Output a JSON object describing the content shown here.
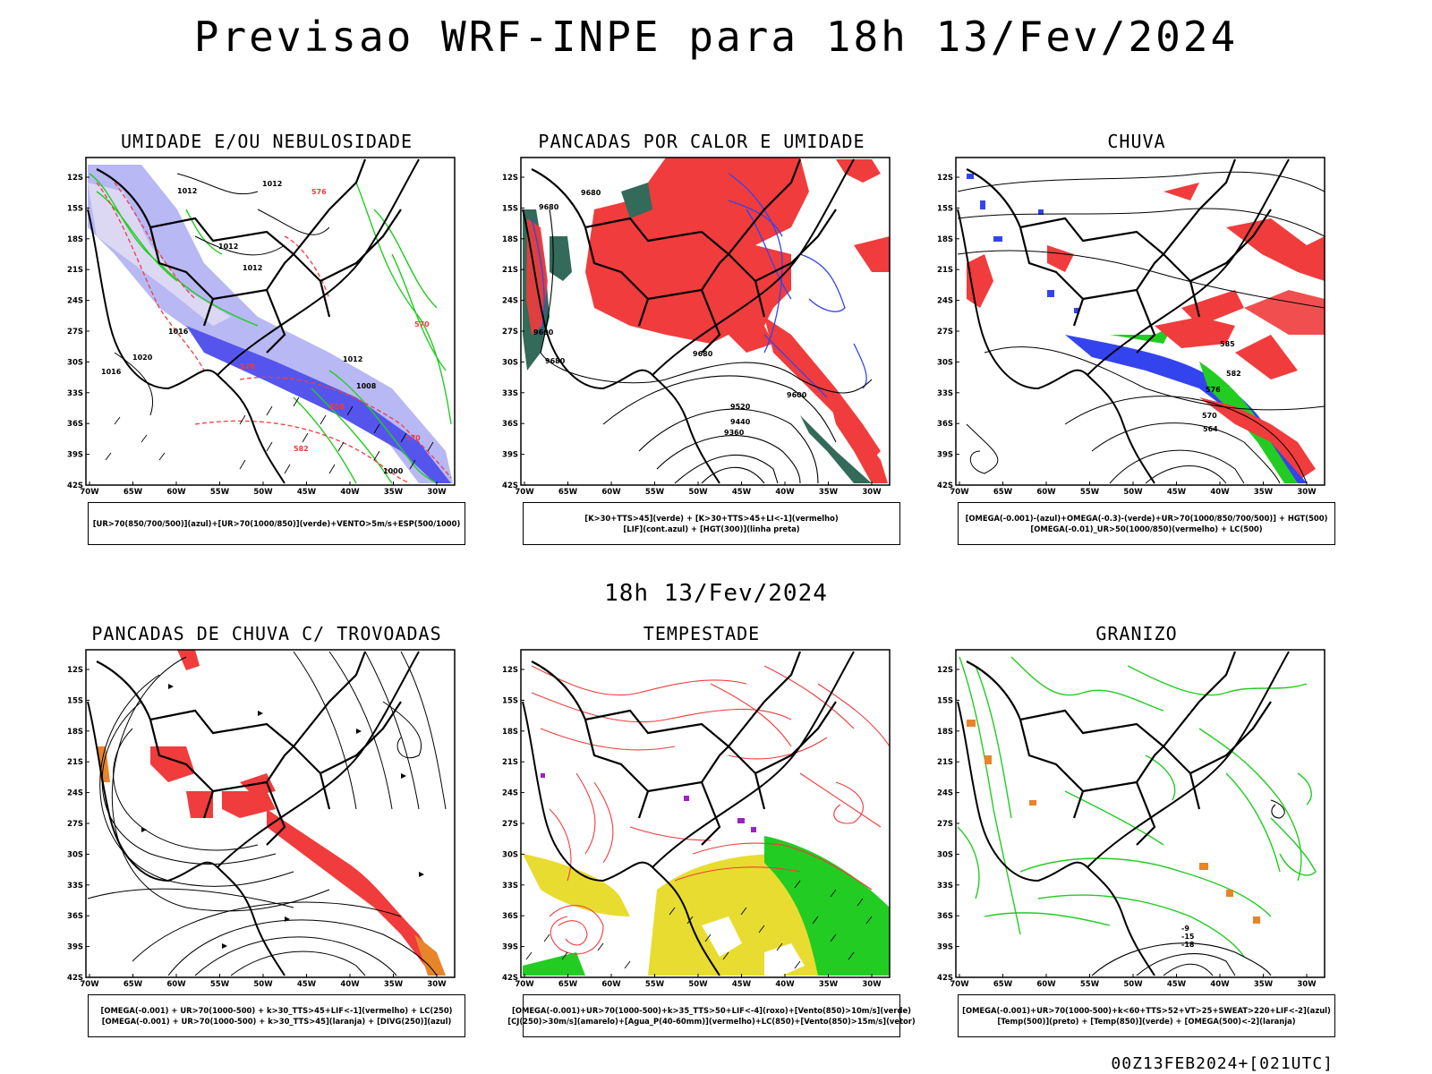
{
  "title": "Previsao WRF-INPE  para 18h 13/Fev/2024",
  "mid_title": "18h 13/Fev/2024",
  "footer": "00Z13FEB2024+[021UTC]",
  "axis": {
    "lat_labels": [
      "12S",
      "15S",
      "18S",
      "21S",
      "24S",
      "27S",
      "30S",
      "33S",
      "36S",
      "39S",
      "42S"
    ],
    "lon_labels": [
      "70W",
      "65W",
      "60W",
      "55W",
      "50W",
      "45W",
      "40W",
      "35W",
      "30W"
    ]
  },
  "panels": [
    {
      "title": "UMIDADE E/OU NEBULOSIDADE",
      "legend": [
        "[UR>70(850/700/500)](azul)+[UR>70(1000/850)](verde)+VENTO>5m/s+ESP(500/1000)"
      ]
    },
    {
      "title": "PANCADAS POR CALOR E UMIDADE",
      "legend": [
        "[K>30+TTS>45](verde) + [K>30+TTS>45+LI<-1](vermelho)",
        "[LIF](cont.azul) + [HGT(300)](linha preta)"
      ],
      "contour_labels": [
        "9680",
        "9680",
        "9600",
        "9680",
        "9680",
        "9520",
        "9440",
        "9360",
        "9600"
      ]
    },
    {
      "title": "CHUVA",
      "legend": [
        "[OMEGA(-0.001)-(azul)+OMEGA(-0.3)-(verde)+UR>70(1000/850/700/500)] + HGT(500)",
        "[OMEGA(-0.01)_UR>50(1000/850)(vermelho) + LC(500)"
      ],
      "contour_labels": [
        "585",
        "582",
        "576",
        "570",
        "564"
      ]
    },
    {
      "title": "PANCADAS DE CHUVA C/ TROVOADAS",
      "legend": [
        "[OMEGA(-0.001) + UR>70(1000-500) + k>30_TTS>45+LIF<-1](vermelho) + LC(250)",
        "[OMEGA(-0.001) + UR>70(1000-500) + k>30_TTS>45](laranja) + [DIVG(250)](azul)"
      ]
    },
    {
      "title": "TEMPESTADE",
      "legend": [
        "[OMEGA(-0.001)+UR>70(1000-500)+k>35_TTS>50+LIF<-4](roxo)+[Vento(850)>10m/s](verde)",
        "[CJ(250)>30m/s](amarelo)+[Agua_P(40-60mm)](vermelho)+LC(850)+[Vento(850)>15m/s](vetor)"
      ]
    },
    {
      "title": "GRANIZO",
      "legend": [
        "[OMEGA(-0.001)+UR>70(1000-500)+k<60+TTS>52+VT>25+SWEAT>220+LIF<-2](azul)",
        "[Temp(500)](preto) + [Temp(850)](verde) + [OMEGA(500)<-2](laranja)"
      ],
      "contour_labels": [
        "-9",
        "-15",
        "-18"
      ]
    }
  ],
  "colors": {
    "map_line": "#000000",
    "red": "#f03c3c",
    "green": "#22cc22",
    "blue": "#3344ee",
    "lavender": "#b8b8f4",
    "yellow": "#e8dc30",
    "dark_teal": "#336a5a",
    "orange": "#e8842a",
    "purple": "#9a22c8"
  }
}
